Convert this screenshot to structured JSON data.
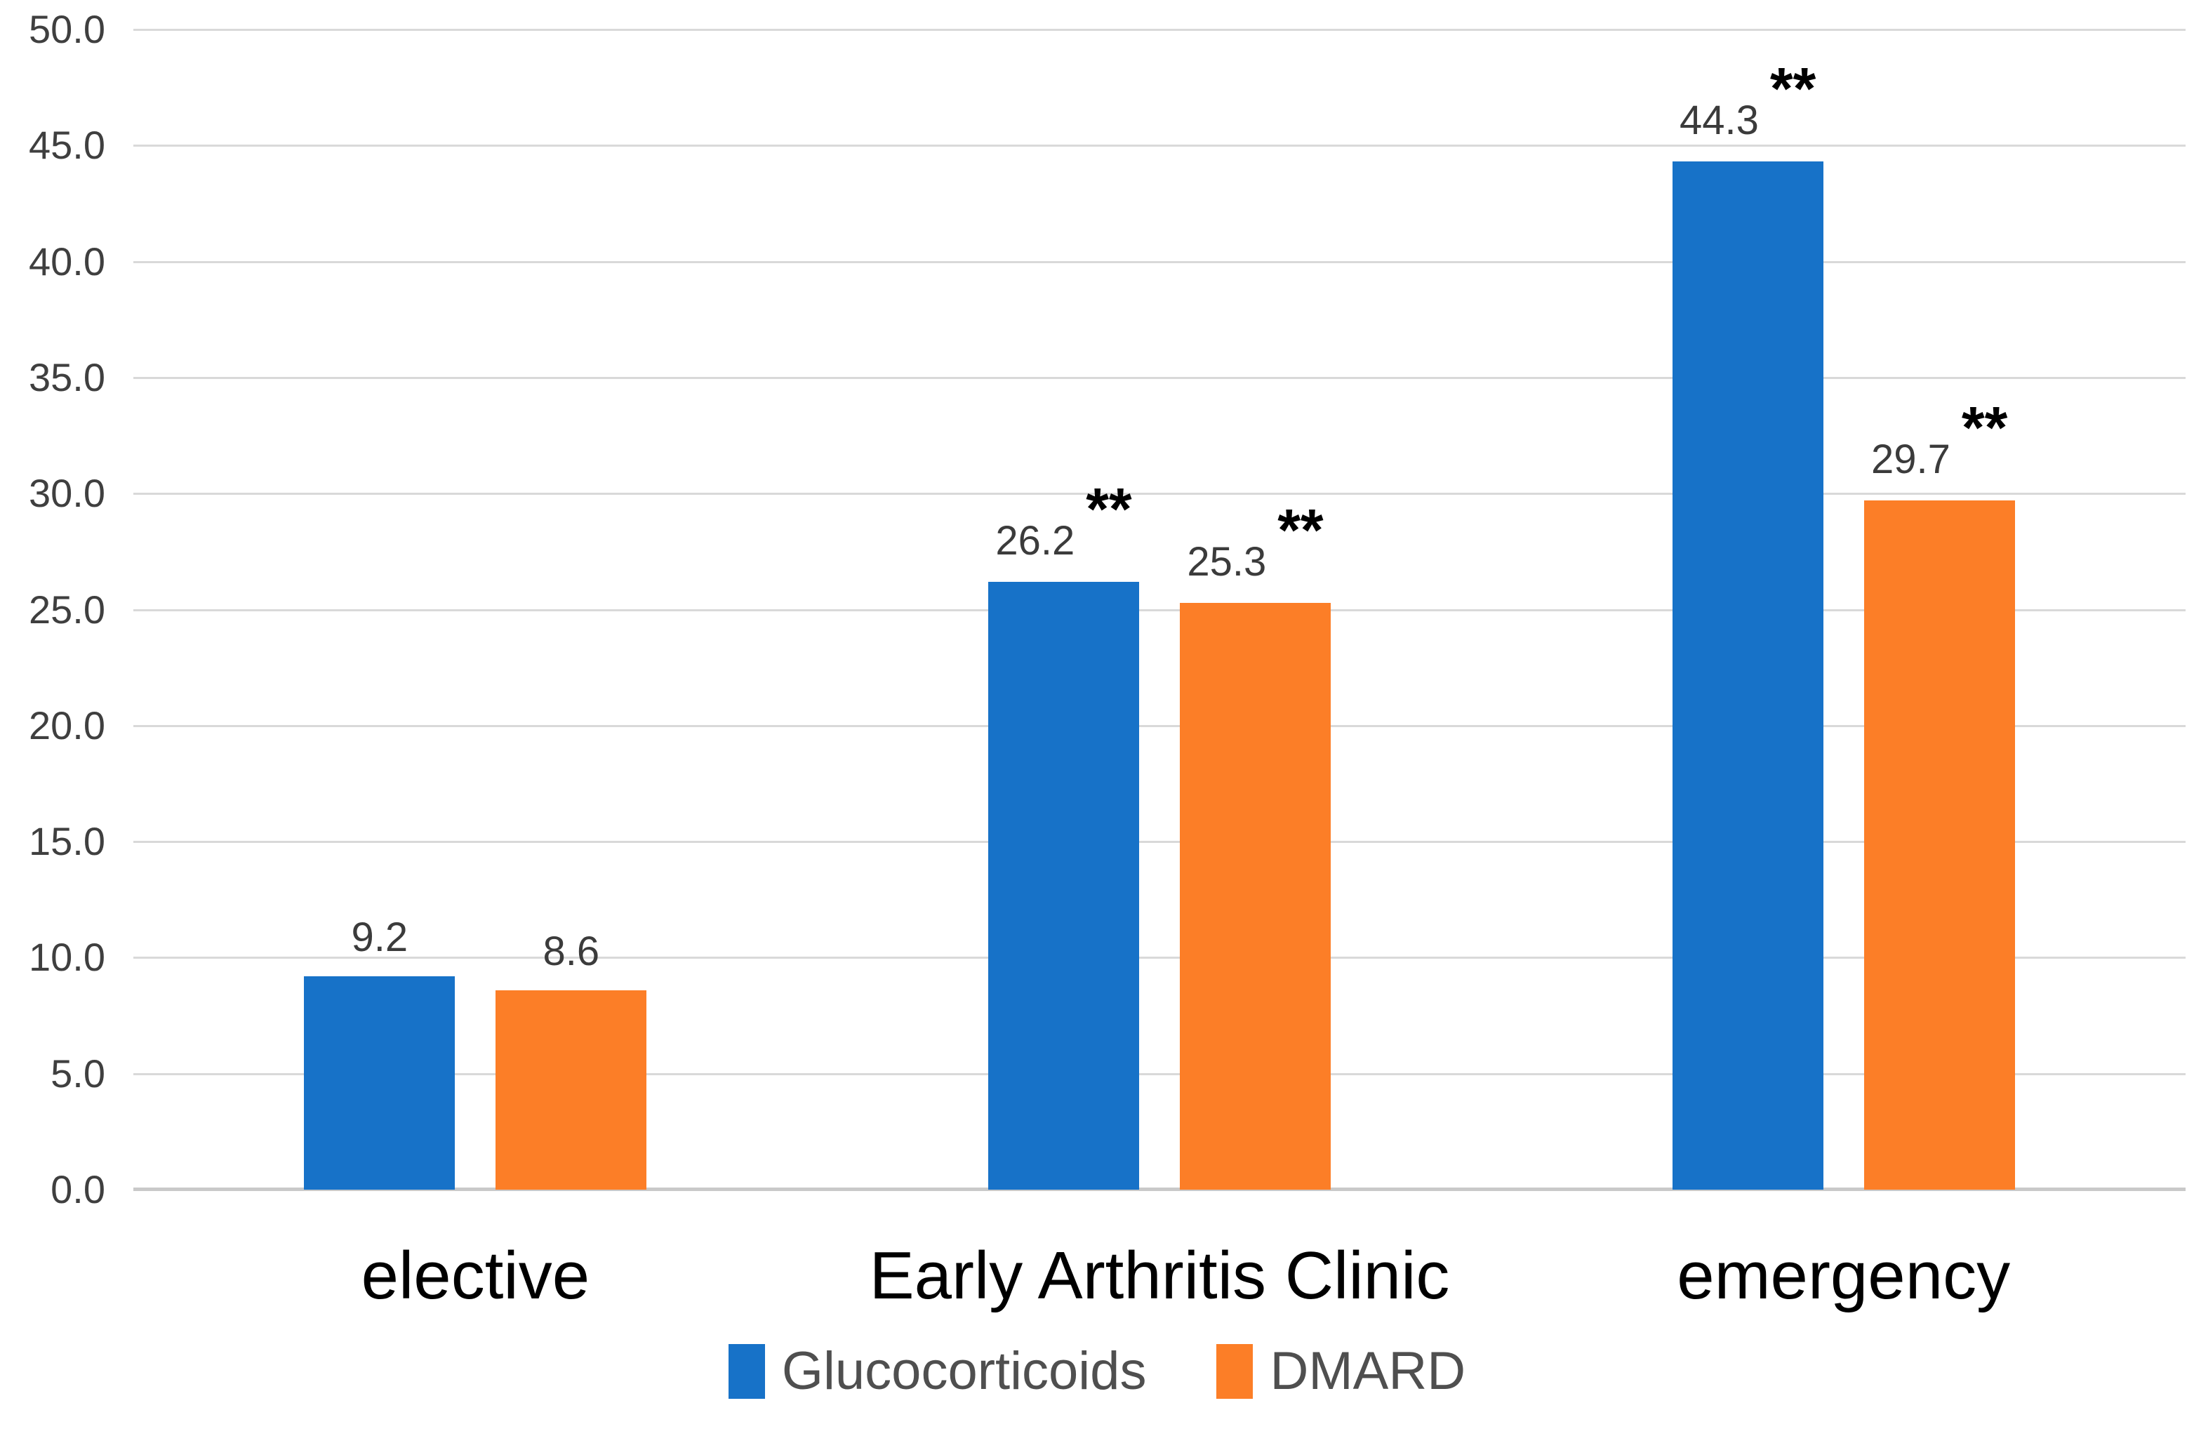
{
  "chart_data": {
    "type": "bar",
    "title": "",
    "xlabel": "",
    "ylabel": "",
    "categories": [
      "elective",
      "Early Arthritis Clinic",
      "emergency"
    ],
    "series": [
      {
        "name": "Glucocorticoids",
        "color": "#1772C8",
        "values": [
          9.2,
          26.2,
          44.3
        ],
        "annotations": [
          "",
          "**",
          "**"
        ]
      },
      {
        "name": "DMARD",
        "color": "#FC7E27",
        "values": [
          8.6,
          25.3,
          29.7
        ],
        "annotations": [
          "",
          "**",
          "**"
        ]
      }
    ],
    "ylim": [
      0,
      50
    ],
    "ytick_step": 5,
    "ytick_labels": [
      "0.0",
      "5.0",
      "10.0",
      "15.0",
      "20.0",
      "25.0",
      "30.0",
      "35.0",
      "40.0",
      "45.0",
      "50.0"
    ],
    "grid": true,
    "gridline_color": "#D9D9D9",
    "legend_position": "bottom"
  }
}
